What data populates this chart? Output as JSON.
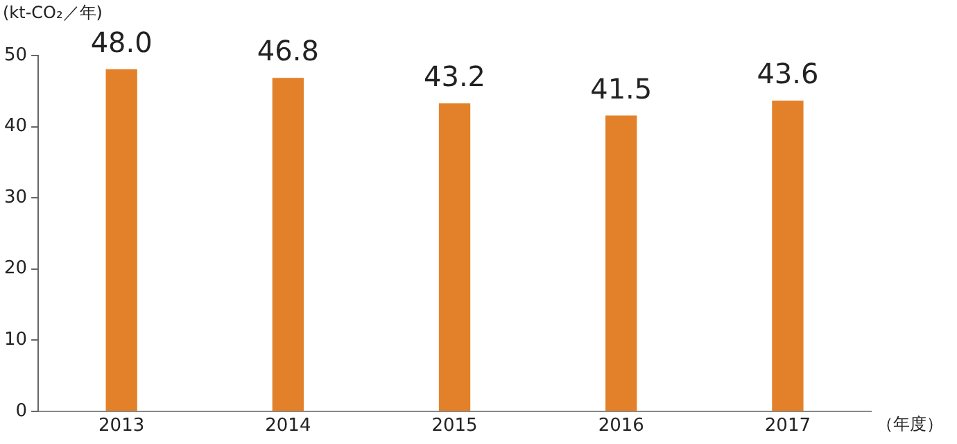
{
  "chart_data": {
    "type": "bar",
    "ylabel": "(kt-CO₂／年)",
    "xlabel": "（年度）",
    "categories": [
      "2013",
      "2014",
      "2015",
      "2016",
      "2017"
    ],
    "values": [
      48.0,
      46.8,
      43.2,
      41.5,
      43.6
    ],
    "color": "#e3812b",
    "ylim": [
      0,
      50
    ],
    "yticks": [
      0,
      10,
      20,
      30,
      40,
      50
    ],
    "grid": false,
    "value_labels": [
      "48.0",
      "46.8",
      "43.2",
      "41.5",
      "43.6"
    ]
  }
}
